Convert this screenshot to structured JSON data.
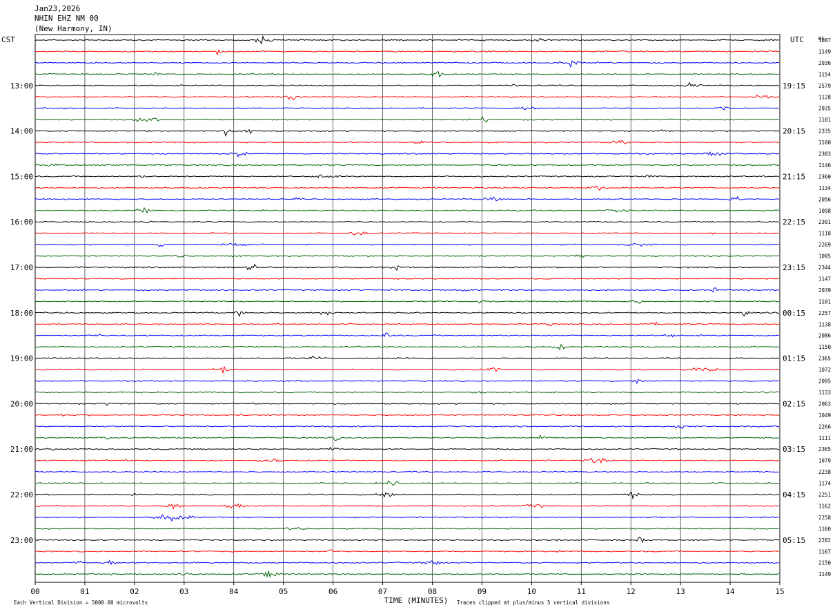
{
  "header": {
    "date": "Jan23,2026",
    "station": "NHIN EHZ NM 00",
    "location": "(New Harmony, IN)"
  },
  "labels": {
    "left_zone": "CST",
    "right_zone": "UTC",
    "dc_label": "DC",
    "xlabel": "TIME (MINUTES)",
    "scale_note": "Each Vertical Division = 5000.00 microvolts",
    "clip_note": "Traces clipped at plus/minus 5 vertical divisions"
  },
  "chart_data": {
    "type": "line",
    "description_units": "helicorder, 15 minutes per trace row",
    "xlim": [
      0,
      15
    ],
    "x_ticks": [
      "00",
      "01",
      "02",
      "03",
      "04",
      "05",
      "06",
      "07",
      "08",
      "09",
      "10",
      "11",
      "12",
      "13",
      "14",
      "15"
    ],
    "grid": true,
    "trace_colors": [
      "#000000",
      "#ff0000",
      "#0000ff",
      "#006400"
    ],
    "cst_hour_labels": [
      "13:00",
      "14:00",
      "15:00",
      "16:00",
      "17:00",
      "18:00",
      "19:00",
      "20:00",
      "21:00",
      "22:00",
      "23:00"
    ],
    "utc_hour_labels": [
      "19:15",
      "20:15",
      "21:15",
      "22:15",
      "23:15",
      "00:15",
      "01:15",
      "02:15",
      "03:15",
      "04:15",
      "05:15"
    ],
    "dc_offsets": [
      "1087",
      "1149",
      "2036",
      "1154",
      "2579",
      "1128",
      "2035",
      "1101",
      "2335",
      "1100",
      "2383",
      "1146",
      "2360",
      "1134",
      "2056",
      "1098",
      "2301",
      "1118",
      "2269",
      "1095",
      "2344",
      "1147",
      "2039",
      "1101",
      "2257",
      "1138",
      "2086",
      "1150",
      "2365",
      "1072",
      "2095",
      "1133",
      "2063",
      "1049",
      "2266",
      "1111",
      "2365",
      "1079",
      "2238",
      "1174",
      "2251",
      "1162",
      "2258",
      "1160",
      "2282",
      "1167",
      "2150",
      "1149"
    ]
  }
}
